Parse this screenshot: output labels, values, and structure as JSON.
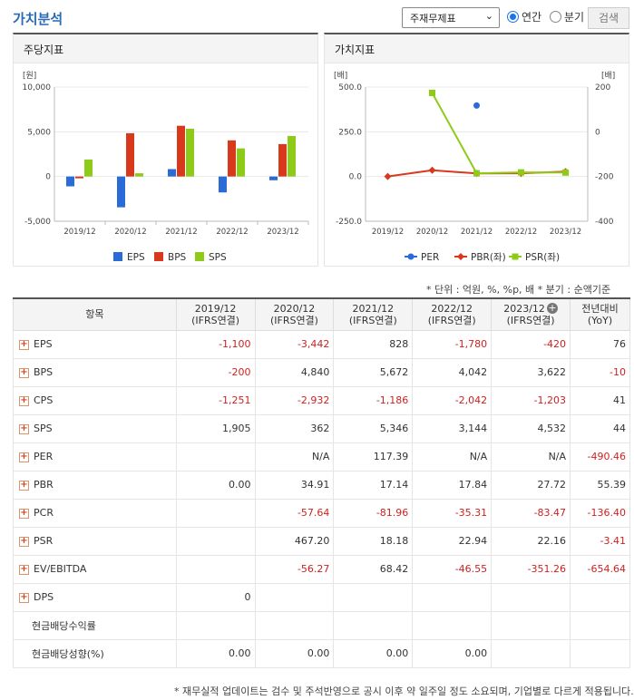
{
  "header": {
    "title": "가치분석",
    "select_value": "주재무제표",
    "radio_annual": "연간",
    "radio_quarter": "분기",
    "search_label": "검색"
  },
  "panels": {
    "left_title": "주당지표",
    "right_title": "가치지표"
  },
  "chart_data": [
    {
      "type": "bar",
      "unit_label": "[원]",
      "categories": [
        "2019/12",
        "2020/12",
        "2021/12",
        "2022/12",
        "2023/12"
      ],
      "series": [
        {
          "name": "EPS",
          "color": "#2a6bd8",
          "values": [
            -1100,
            -3442,
            828,
            -1780,
            -420
          ]
        },
        {
          "name": "BPS",
          "color": "#d8391c",
          "values": [
            -200,
            4840,
            5672,
            4042,
            3622
          ]
        },
        {
          "name": "SPS",
          "color": "#8ecb18",
          "values": [
            1905,
            362,
            5346,
            3144,
            4532
          ]
        }
      ],
      "ylim": [
        -5000,
        10000
      ],
      "yticks": [
        "10,000",
        "5,000",
        "0",
        "-5,000"
      ],
      "legend": "bottom"
    },
    {
      "type": "line",
      "left_unit_label": "[배]",
      "right_unit_label": "[배]",
      "categories": [
        "2019/12",
        "2020/12",
        "2021/12",
        "2022/12",
        "2023/12"
      ],
      "series": [
        {
          "name": "PER",
          "axis": "right",
          "color": "#2a6bd8",
          "marker": "circle",
          "values": [
            null,
            null,
            117.39,
            null,
            null
          ]
        },
        {
          "name": "PBR(좌)",
          "axis": "left",
          "color": "#d8391c",
          "marker": "diamond",
          "values": [
            0.0,
            34.91,
            17.14,
            17.84,
            27.72
          ]
        },
        {
          "name": "PSR(좌)",
          "axis": "left",
          "color": "#8ecb18",
          "marker": "square",
          "values": [
            null,
            467.2,
            18.18,
            22.94,
            22.16
          ]
        }
      ],
      "ylim_left": [
        -250,
        500
      ],
      "ylim_right": [
        -400,
        200
      ],
      "yticks_left": [
        "500.0",
        "250.0",
        "0.0",
        "-250.0"
      ],
      "yticks_right": [
        "200",
        "0",
        "-200",
        "-400"
      ],
      "legend": "bottom"
    }
  ],
  "table": {
    "unit_note": "* 단위 : 억원, %, %p, 배     * 분기 : 순액기준",
    "col_header": "항목",
    "columns": [
      {
        "l1": "2019/12",
        "l2": "(IFRS연결)"
      },
      {
        "l1": "2020/12",
        "l2": "(IFRS연결)"
      },
      {
        "l1": "2021/12",
        "l2": "(IFRS연결)"
      },
      {
        "l1": "2022/12",
        "l2": "(IFRS연결)"
      },
      {
        "l1": "2023/12",
        "l2": "(IFRS연결)"
      },
      {
        "l1": "전년대비",
        "l2": "(YoY)"
      }
    ],
    "rows": [
      {
        "label": "EPS",
        "expand": true,
        "cells": [
          "-1,100",
          "-3,442",
          "828",
          "-1,780",
          "-420",
          "76"
        ]
      },
      {
        "label": "BPS",
        "expand": true,
        "cells": [
          "-200",
          "4,840",
          "5,672",
          "4,042",
          "3,622",
          "-10"
        ]
      },
      {
        "label": "CPS",
        "expand": true,
        "cells": [
          "-1,251",
          "-2,932",
          "-1,186",
          "-2,042",
          "-1,203",
          "41"
        ]
      },
      {
        "label": "SPS",
        "expand": true,
        "cells": [
          "1,905",
          "362",
          "5,346",
          "3,144",
          "4,532",
          "44"
        ]
      },
      {
        "label": "PER",
        "expand": true,
        "cells": [
          "",
          "N/A",
          "117.39",
          "N/A",
          "N/A",
          "-490.46"
        ]
      },
      {
        "label": "PBR",
        "expand": true,
        "cells": [
          "0.00",
          "34.91",
          "17.14",
          "17.84",
          "27.72",
          "55.39"
        ]
      },
      {
        "label": "PCR",
        "expand": true,
        "cells": [
          "",
          "-57.64",
          "-81.96",
          "-35.31",
          "-83.47",
          "-136.40"
        ]
      },
      {
        "label": "PSR",
        "expand": true,
        "cells": [
          "",
          "467.20",
          "18.18",
          "22.94",
          "22.16",
          "-3.41"
        ]
      },
      {
        "label": "EV/EBITDA",
        "expand": true,
        "cells": [
          "",
          "-56.27",
          "68.42",
          "-46.55",
          "-351.26",
          "-654.64"
        ]
      },
      {
        "label": "DPS",
        "expand": true,
        "cells": [
          "0",
          "",
          "",
          "",
          "",
          ""
        ]
      },
      {
        "label": "현금배당수익률",
        "expand": false,
        "cells": [
          "",
          "",
          "",
          "",
          "",
          ""
        ]
      },
      {
        "label": "현금배당성향(%)",
        "expand": false,
        "cells": [
          "0.00",
          "0.00",
          "0.00",
          "0.00",
          "",
          ""
        ]
      }
    ]
  },
  "footer_note": "* 재무실적 업데이트는 검수 및 주석반영으로 공시 이후 약 일주일 정도 소요되며, 기업별로 다르게 적용됩니다."
}
